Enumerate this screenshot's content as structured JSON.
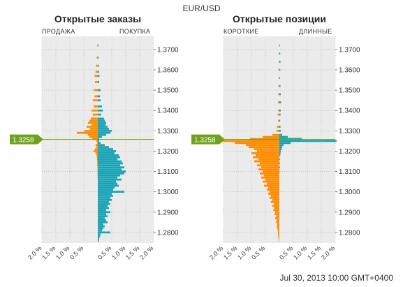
{
  "header": {
    "pair": "EUR/USD"
  },
  "footer": {
    "timestamp": "Jul 30, 2013 10:00 GMT+0400"
  },
  "colors": {
    "sell_short": "#ff8c00",
    "buy_long": "#1aa3b4",
    "current_price": "#6fa31f",
    "plot_bg": "#ebebeb",
    "grid": "#bcbcbc"
  },
  "chart_data": [
    {
      "type": "bar",
      "orientation": "horizontal-diverging",
      "title": "Открытые заказы",
      "left_label": "ПРОДАЖА",
      "right_label": "ПОКУПКА",
      "current_price": 1.3258,
      "current_price_label": "1.3258",
      "y_ticks": [
        1.37,
        1.36,
        1.35,
        1.34,
        1.33,
        1.32,
        1.31,
        1.3,
        1.29,
        1.28
      ],
      "y_tick_labels": [
        "1.3700",
        "1.3600",
        "1.3500",
        "1.3400",
        "1.3300",
        "1.3200",
        "1.3100",
        "1.3000",
        "1.2900",
        "1.2800"
      ],
      "ylim": [
        1.2748,
        1.3765
      ],
      "x_ticks": [
        -2.0,
        -1.5,
        -1.0,
        -0.5,
        0.5,
        1.0,
        1.5,
        2.0
      ],
      "x_tick_labels": [
        "2.0 %",
        "1.5 %",
        "1.0 %",
        "0.5 %",
        "0.5 %",
        "1.0 %",
        "1.5 %",
        "2.0 %"
      ],
      "xlim": [
        -2.0,
        2.0
      ],
      "series": [
        {
          "name": "ПРОДАЖА",
          "side": "left",
          "points": [
            [
              1.372,
              0.02
            ],
            [
              1.366,
              0.04
            ],
            [
              1.362,
              0.06
            ],
            [
              1.359,
              0.08
            ],
            [
              1.357,
              0.12
            ],
            [
              1.354,
              0.1
            ],
            [
              1.35,
              0.15
            ],
            [
              1.347,
              0.12
            ],
            [
              1.345,
              0.18
            ],
            [
              1.342,
              0.15
            ],
            [
              1.34,
              0.22
            ],
            [
              1.338,
              0.18
            ],
            [
              1.336,
              0.25
            ],
            [
              1.335,
              0.3
            ],
            [
              1.334,
              0.35
            ],
            [
              1.333,
              0.22
            ],
            [
              1.332,
              0.4
            ],
            [
              1.331,
              0.28
            ],
            [
              1.33,
              0.48
            ],
            [
              1.329,
              0.75
            ],
            [
              1.328,
              0.35
            ],
            [
              1.327,
              0.3
            ],
            [
              1.326,
              0.2
            ],
            [
              1.325,
              0.05
            ],
            [
              1.324,
              0.02
            ],
            [
              1.323,
              0.08
            ],
            [
              1.322,
              0.05
            ],
            [
              1.321,
              0.1
            ],
            [
              1.32,
              0.15
            ],
            [
              1.319,
              0.08
            ],
            [
              1.318,
              0.05
            ],
            [
              1.317,
              0.03
            ],
            [
              1.316,
              0.03
            ],
            [
              1.315,
              0.02
            ],
            [
              1.314,
              0.02
            ],
            [
              1.313,
              0.02
            ],
            [
              1.312,
              0.01
            ],
            [
              1.311,
              0.01
            ],
            [
              1.31,
              0.01
            ],
            [
              1.309,
              0.01
            ],
            [
              1.308,
              0.01
            ],
            [
              1.307,
              0.01
            ]
          ]
        },
        {
          "name": "ПОКУПКА",
          "side": "right",
          "points": [
            [
              1.372,
              0.02
            ],
            [
              1.366,
              0.03
            ],
            [
              1.362,
              0.04
            ],
            [
              1.359,
              0.05
            ],
            [
              1.357,
              0.06
            ],
            [
              1.354,
              0.05
            ],
            [
              1.35,
              0.1
            ],
            [
              1.347,
              0.08
            ],
            [
              1.345,
              0.1
            ],
            [
              1.342,
              0.15
            ],
            [
              1.34,
              0.18
            ],
            [
              1.338,
              0.12
            ],
            [
              1.336,
              0.22
            ],
            [
              1.335,
              0.25
            ],
            [
              1.334,
              0.3
            ],
            [
              1.333,
              0.28
            ],
            [
              1.332,
              0.35
            ],
            [
              1.331,
              0.4
            ],
            [
              1.33,
              0.5
            ],
            [
              1.329,
              0.45
            ],
            [
              1.328,
              0.3
            ],
            [
              1.327,
              0.15
            ],
            [
              1.326,
              0.05
            ],
            [
              1.325,
              0.05
            ],
            [
              1.324,
              0.1
            ],
            [
              1.323,
              0.25
            ],
            [
              1.322,
              0.4
            ],
            [
              1.321,
              0.55
            ],
            [
              1.32,
              0.65
            ],
            [
              1.319,
              0.6
            ],
            [
              1.318,
              0.75
            ],
            [
              1.317,
              0.8
            ],
            [
              1.316,
              0.7
            ],
            [
              1.315,
              0.85
            ],
            [
              1.314,
              0.9
            ],
            [
              1.313,
              0.8
            ],
            [
              1.312,
              0.95
            ],
            [
              1.311,
              0.85
            ],
            [
              1.31,
              1.0
            ],
            [
              1.309,
              0.95
            ],
            [
              1.308,
              0.8
            ],
            [
              1.307,
              0.7
            ],
            [
              1.306,
              0.85
            ],
            [
              1.305,
              0.65
            ],
            [
              1.304,
              0.7
            ],
            [
              1.303,
              0.75
            ],
            [
              1.302,
              0.6
            ],
            [
              1.301,
              0.55
            ],
            [
              1.3,
              0.95
            ],
            [
              1.299,
              0.5
            ],
            [
              1.298,
              0.55
            ],
            [
              1.297,
              0.45
            ],
            [
              1.296,
              0.5
            ],
            [
              1.295,
              0.4
            ],
            [
              1.294,
              0.45
            ],
            [
              1.293,
              0.35
            ],
            [
              1.292,
              0.4
            ],
            [
              1.291,
              0.3
            ],
            [
              1.29,
              0.45
            ],
            [
              1.289,
              0.3
            ],
            [
              1.288,
              0.35
            ],
            [
              1.287,
              0.25
            ],
            [
              1.286,
              0.3
            ],
            [
              1.285,
              0.35
            ],
            [
              1.284,
              0.2
            ],
            [
              1.283,
              0.25
            ],
            [
              1.282,
              0.2
            ],
            [
              1.281,
              0.15
            ],
            [
              1.28,
              0.45
            ],
            [
              1.279,
              0.1
            ],
            [
              1.278,
              0.08
            ],
            [
              1.277,
              0.05
            ],
            [
              1.276,
              0.04
            ]
          ]
        }
      ]
    },
    {
      "type": "bar",
      "orientation": "horizontal-diverging",
      "title": "Открытые позиции",
      "left_label": "КОРОТКИЕ",
      "right_label": "ДЛИННЫЕ",
      "current_price": 1.3258,
      "current_price_label": "1.3258",
      "y_ticks": [
        1.37,
        1.36,
        1.35,
        1.34,
        1.33,
        1.32,
        1.31,
        1.3,
        1.29,
        1.28
      ],
      "y_tick_labels": [
        "1.3700",
        "1.3600",
        "1.3500",
        "1.3400",
        "1.3300",
        "1.3200",
        "1.3100",
        "1.3000",
        "1.2900",
        "1.2800"
      ],
      "ylim": [
        1.2748,
        1.3765
      ],
      "x_ticks": [
        -2.0,
        -1.5,
        -1.0,
        -0.5,
        0.5,
        1.0,
        1.5,
        2.0
      ],
      "x_tick_labels": [
        "2.0 %",
        "1.5 %",
        "1.0 %",
        "0.5 %",
        "0.5 %",
        "1.0 %",
        "1.5 %",
        "2.0 %"
      ],
      "xlim": [
        -2.0,
        2.0
      ],
      "series": [
        {
          "name": "КОРОТКИЕ",
          "side": "left",
          "points": [
            [
              1.372,
              0.01
            ],
            [
              1.368,
              0.02
            ],
            [
              1.364,
              0.01
            ],
            [
              1.36,
              0.03
            ],
            [
              1.356,
              0.02
            ],
            [
              1.352,
              0.03
            ],
            [
              1.348,
              0.04
            ],
            [
              1.344,
              0.05
            ],
            [
              1.34,
              0.04
            ],
            [
              1.338,
              0.06
            ],
            [
              1.335,
              0.05
            ],
            [
              1.332,
              0.08
            ],
            [
              1.33,
              0.1
            ],
            [
              1.328,
              0.25
            ],
            [
              1.327,
              0.6
            ],
            [
              1.326,
              1.05
            ],
            [
              1.325,
              2.05
            ],
            [
              1.324,
              1.6
            ],
            [
              1.323,
              1.2
            ],
            [
              1.322,
              1.1
            ],
            [
              1.321,
              0.9
            ],
            [
              1.32,
              0.8
            ],
            [
              1.319,
              1.0
            ],
            [
              1.318,
              0.85
            ],
            [
              1.317,
              0.95
            ],
            [
              1.316,
              0.75
            ],
            [
              1.315,
              0.9
            ],
            [
              1.314,
              0.7
            ],
            [
              1.313,
              0.8
            ],
            [
              1.312,
              0.65
            ],
            [
              1.311,
              0.75
            ],
            [
              1.31,
              0.6
            ],
            [
              1.309,
              0.7
            ],
            [
              1.308,
              0.55
            ],
            [
              1.307,
              0.65
            ],
            [
              1.306,
              0.5
            ],
            [
              1.305,
              0.6
            ],
            [
              1.304,
              0.45
            ],
            [
              1.303,
              0.55
            ],
            [
              1.302,
              0.4
            ],
            [
              1.301,
              0.45
            ],
            [
              1.3,
              0.35
            ],
            [
              1.299,
              0.4
            ],
            [
              1.298,
              0.3
            ],
            [
              1.297,
              0.35
            ],
            [
              1.296,
              0.25
            ],
            [
              1.295,
              0.3
            ],
            [
              1.294,
              0.2
            ],
            [
              1.293,
              0.25
            ],
            [
              1.292,
              0.18
            ],
            [
              1.291,
              0.22
            ],
            [
              1.29,
              0.15
            ],
            [
              1.289,
              0.18
            ],
            [
              1.288,
              0.12
            ],
            [
              1.287,
              0.15
            ],
            [
              1.286,
              0.1
            ],
            [
              1.285,
              0.12
            ],
            [
              1.284,
              0.08
            ],
            [
              1.283,
              0.1
            ],
            [
              1.282,
              0.08
            ],
            [
              1.281,
              0.06
            ],
            [
              1.28,
              0.05
            ],
            [
              1.279,
              0.05
            ],
            [
              1.278,
              0.04
            ],
            [
              1.277,
              0.03
            ],
            [
              1.276,
              0.02
            ]
          ]
        },
        {
          "name": "ДЛИННЫЕ",
          "side": "right",
          "points": [
            [
              1.372,
              0.02
            ],
            [
              1.368,
              0.03
            ],
            [
              1.364,
              0.04
            ],
            [
              1.36,
              0.03
            ],
            [
              1.356,
              0.02
            ],
            [
              1.352,
              0.04
            ],
            [
              1.348,
              0.05
            ],
            [
              1.344,
              0.06
            ],
            [
              1.34,
              0.05
            ],
            [
              1.338,
              0.04
            ],
            [
              1.335,
              0.03
            ],
            [
              1.332,
              0.04
            ],
            [
              1.33,
              0.05
            ],
            [
              1.328,
              0.1
            ],
            [
              1.327,
              0.3
            ],
            [
              1.326,
              0.8
            ],
            [
              1.325,
              2.05
            ],
            [
              1.324,
              0.4
            ],
            [
              1.323,
              0.15
            ],
            [
              1.322,
              0.1
            ],
            [
              1.321,
              0.08
            ],
            [
              1.32,
              0.05
            ],
            [
              1.319,
              0.04
            ],
            [
              1.318,
              0.03
            ],
            [
              1.316,
              0.02
            ],
            [
              1.314,
              0.02
            ],
            [
              1.312,
              0.02
            ],
            [
              1.31,
              0.01
            ]
          ]
        }
      ]
    }
  ]
}
